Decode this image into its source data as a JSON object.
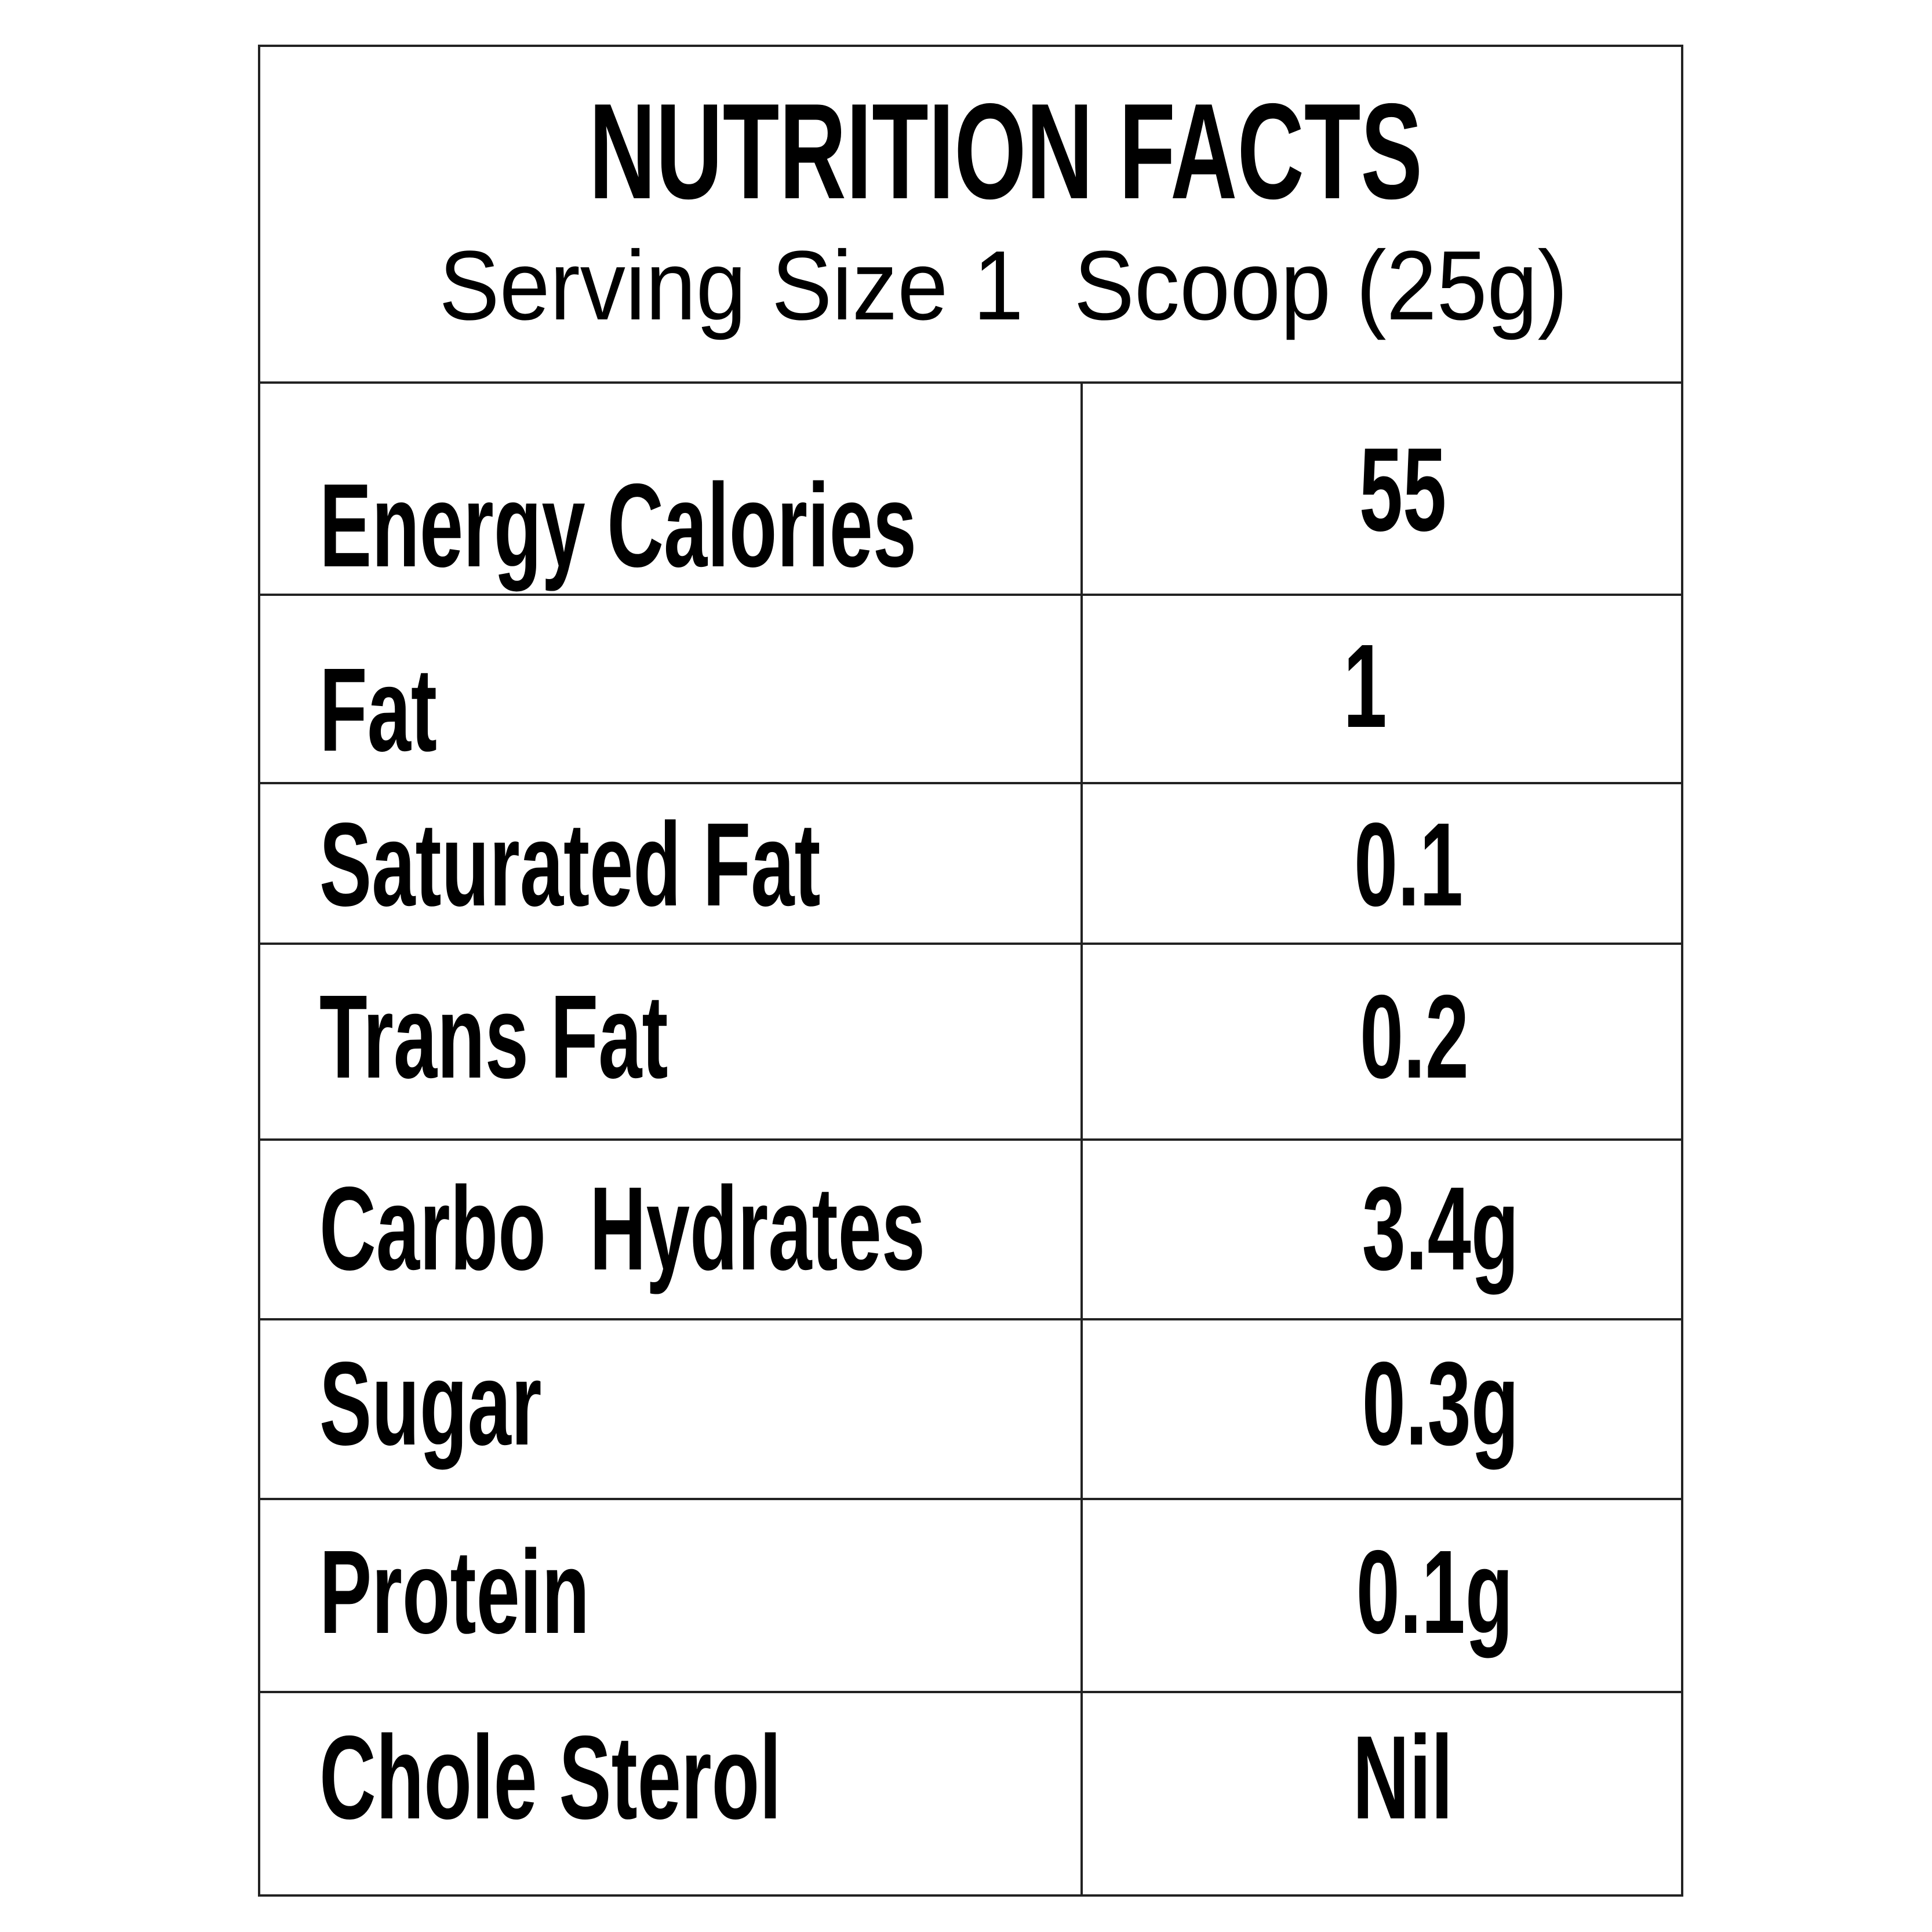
{
  "header": {
    "title": "NUTRITION FACTS",
    "serving_size": "Serving Size 1  Scoop (25g)"
  },
  "table": {
    "rows": [
      [
        "Energy Calories",
        "55"
      ],
      [
        "Fat",
        "1"
      ],
      [
        "Saturated Fat",
        "0.1"
      ],
      [
        "Trans Fat",
        "0.2"
      ],
      [
        "Carbo  Hydrates",
        "3.4g"
      ],
      [
        "Sugar",
        "0.3g"
      ],
      [
        "Protein",
        "0.1g"
      ],
      [
        "Chole Sterol",
        "Nil"
      ]
    ]
  }
}
